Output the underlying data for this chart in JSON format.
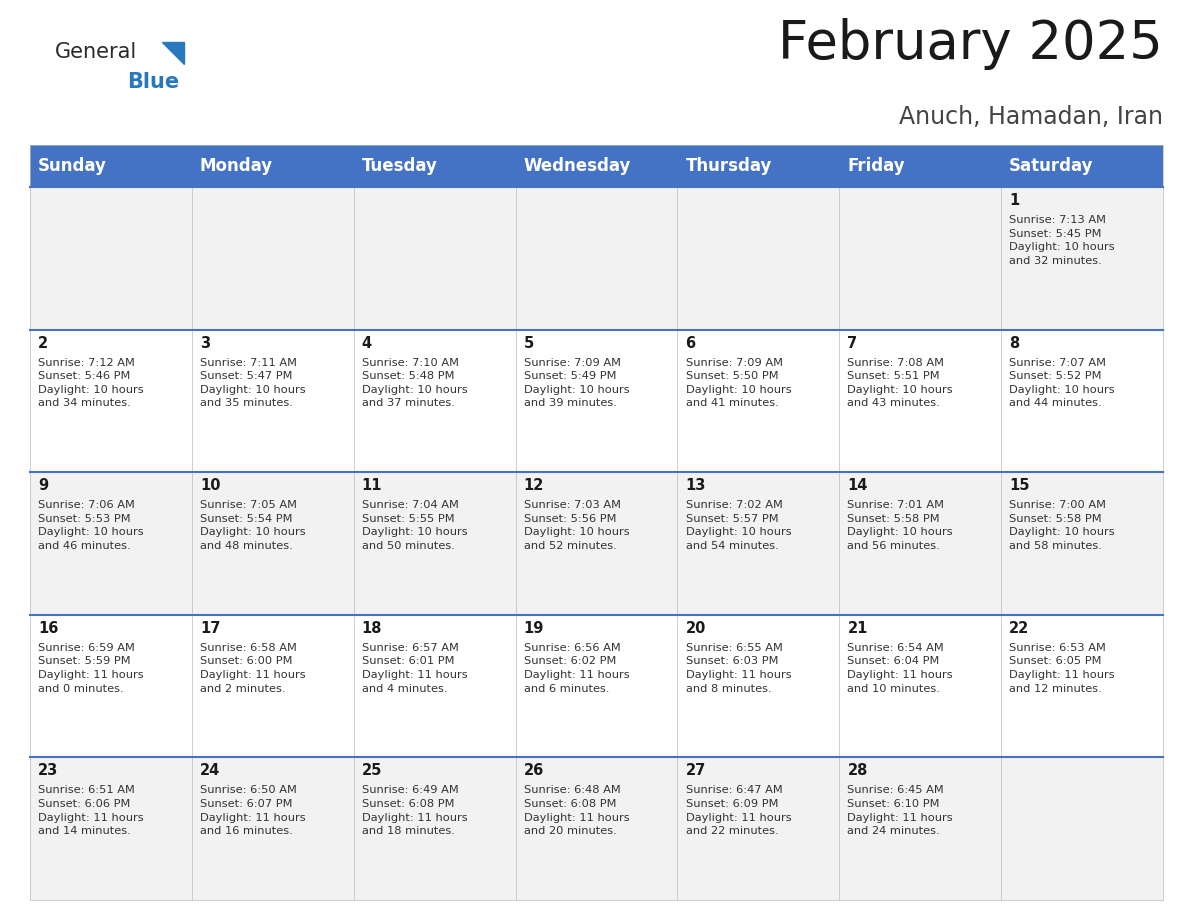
{
  "title": "February 2025",
  "subtitle": "Anuch, Hamadan, Iran",
  "header_bg": "#4472C4",
  "header_text": "#FFFFFF",
  "odd_row_bg": "#F2F2F2",
  "even_row_bg": "#FFFFFF",
  "separator_color": "#4472C4",
  "days_of_week": [
    "Sunday",
    "Monday",
    "Tuesday",
    "Wednesday",
    "Thursday",
    "Friday",
    "Saturday"
  ],
  "calendar_data": [
    [
      {
        "day": "",
        "info": ""
      },
      {
        "day": "",
        "info": ""
      },
      {
        "day": "",
        "info": ""
      },
      {
        "day": "",
        "info": ""
      },
      {
        "day": "",
        "info": ""
      },
      {
        "day": "",
        "info": ""
      },
      {
        "day": "1",
        "info": "Sunrise: 7:13 AM\nSunset: 5:45 PM\nDaylight: 10 hours\nand 32 minutes."
      }
    ],
    [
      {
        "day": "2",
        "info": "Sunrise: 7:12 AM\nSunset: 5:46 PM\nDaylight: 10 hours\nand 34 minutes."
      },
      {
        "day": "3",
        "info": "Sunrise: 7:11 AM\nSunset: 5:47 PM\nDaylight: 10 hours\nand 35 minutes."
      },
      {
        "day": "4",
        "info": "Sunrise: 7:10 AM\nSunset: 5:48 PM\nDaylight: 10 hours\nand 37 minutes."
      },
      {
        "day": "5",
        "info": "Sunrise: 7:09 AM\nSunset: 5:49 PM\nDaylight: 10 hours\nand 39 minutes."
      },
      {
        "day": "6",
        "info": "Sunrise: 7:09 AM\nSunset: 5:50 PM\nDaylight: 10 hours\nand 41 minutes."
      },
      {
        "day": "7",
        "info": "Sunrise: 7:08 AM\nSunset: 5:51 PM\nDaylight: 10 hours\nand 43 minutes."
      },
      {
        "day": "8",
        "info": "Sunrise: 7:07 AM\nSunset: 5:52 PM\nDaylight: 10 hours\nand 44 minutes."
      }
    ],
    [
      {
        "day": "9",
        "info": "Sunrise: 7:06 AM\nSunset: 5:53 PM\nDaylight: 10 hours\nand 46 minutes."
      },
      {
        "day": "10",
        "info": "Sunrise: 7:05 AM\nSunset: 5:54 PM\nDaylight: 10 hours\nand 48 minutes."
      },
      {
        "day": "11",
        "info": "Sunrise: 7:04 AM\nSunset: 5:55 PM\nDaylight: 10 hours\nand 50 minutes."
      },
      {
        "day": "12",
        "info": "Sunrise: 7:03 AM\nSunset: 5:56 PM\nDaylight: 10 hours\nand 52 minutes."
      },
      {
        "day": "13",
        "info": "Sunrise: 7:02 AM\nSunset: 5:57 PM\nDaylight: 10 hours\nand 54 minutes."
      },
      {
        "day": "14",
        "info": "Sunrise: 7:01 AM\nSunset: 5:58 PM\nDaylight: 10 hours\nand 56 minutes."
      },
      {
        "day": "15",
        "info": "Sunrise: 7:00 AM\nSunset: 5:58 PM\nDaylight: 10 hours\nand 58 minutes."
      }
    ],
    [
      {
        "day": "16",
        "info": "Sunrise: 6:59 AM\nSunset: 5:59 PM\nDaylight: 11 hours\nand 0 minutes."
      },
      {
        "day": "17",
        "info": "Sunrise: 6:58 AM\nSunset: 6:00 PM\nDaylight: 11 hours\nand 2 minutes."
      },
      {
        "day": "18",
        "info": "Sunrise: 6:57 AM\nSunset: 6:01 PM\nDaylight: 11 hours\nand 4 minutes."
      },
      {
        "day": "19",
        "info": "Sunrise: 6:56 AM\nSunset: 6:02 PM\nDaylight: 11 hours\nand 6 minutes."
      },
      {
        "day": "20",
        "info": "Sunrise: 6:55 AM\nSunset: 6:03 PM\nDaylight: 11 hours\nand 8 minutes."
      },
      {
        "day": "21",
        "info": "Sunrise: 6:54 AM\nSunset: 6:04 PM\nDaylight: 11 hours\nand 10 minutes."
      },
      {
        "day": "22",
        "info": "Sunrise: 6:53 AM\nSunset: 6:05 PM\nDaylight: 11 hours\nand 12 minutes."
      }
    ],
    [
      {
        "day": "23",
        "info": "Sunrise: 6:51 AM\nSunset: 6:06 PM\nDaylight: 11 hours\nand 14 minutes."
      },
      {
        "day": "24",
        "info": "Sunrise: 6:50 AM\nSunset: 6:07 PM\nDaylight: 11 hours\nand 16 minutes."
      },
      {
        "day": "25",
        "info": "Sunrise: 6:49 AM\nSunset: 6:08 PM\nDaylight: 11 hours\nand 18 minutes."
      },
      {
        "day": "26",
        "info": "Sunrise: 6:48 AM\nSunset: 6:08 PM\nDaylight: 11 hours\nand 20 minutes."
      },
      {
        "day": "27",
        "info": "Sunrise: 6:47 AM\nSunset: 6:09 PM\nDaylight: 11 hours\nand 22 minutes."
      },
      {
        "day": "28",
        "info": "Sunrise: 6:45 AM\nSunset: 6:10 PM\nDaylight: 11 hours\nand 24 minutes."
      },
      {
        "day": "",
        "info": ""
      }
    ]
  ],
  "logo_general_color": "#2a2a2a",
  "logo_blue_color": "#2878be",
  "title_fontsize": 38,
  "subtitle_fontsize": 17,
  "header_fontsize": 12,
  "day_number_fontsize": 10.5,
  "info_fontsize": 8.2
}
